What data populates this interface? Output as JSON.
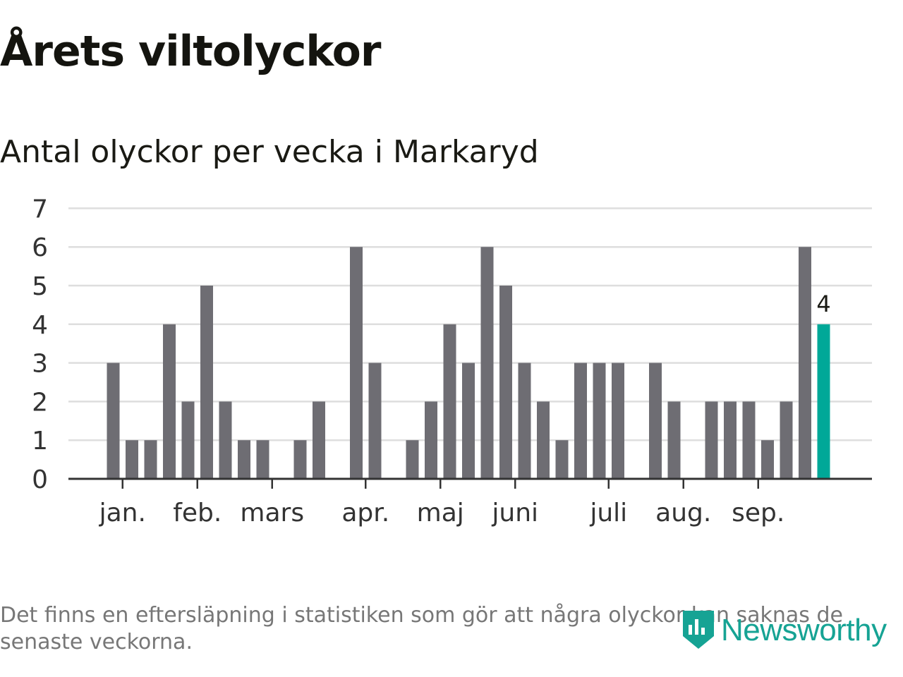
{
  "title": "Årets viltolyckor",
  "subtitle": "Antal olyckor per vecka i Markaryd",
  "footnote": "Det finns en eftersläpning i statistiken som gör att några olyckor kan saknas de senaste veckorna.",
  "logo": {
    "text": "Newsworthy",
    "icon": "chart-shield-icon"
  },
  "colors": {
    "bar": "#6e6d73",
    "highlight": "#00a898",
    "grid": "#dedede",
    "axis": "#333333"
  },
  "chart_data": {
    "type": "bar",
    "ylim": [
      0,
      7
    ],
    "yticks": [
      "0",
      "1",
      "2",
      "3",
      "4",
      "5",
      "6",
      "7"
    ],
    "grid": true,
    "xlabel": "",
    "ylabel": "",
    "week_count": 41,
    "values": [
      0,
      0,
      3,
      1,
      1,
      4,
      2,
      5,
      2,
      1,
      1,
      0,
      1,
      2,
      0,
      6,
      3,
      0,
      1,
      2,
      4,
      3,
      6,
      5,
      3,
      2,
      1,
      3,
      3,
      3,
      0,
      3,
      2,
      0,
      2,
      2,
      2,
      1,
      2,
      6,
      4
    ],
    "highlight_index": 40,
    "highlight_label": "4",
    "month_labels": [
      {
        "label": "jan.",
        "week_index": 2.5
      },
      {
        "label": "feb.",
        "week_index": 6.5
      },
      {
        "label": "mars",
        "week_index": 10.5
      },
      {
        "label": "apr.",
        "week_index": 15.5
      },
      {
        "label": "maj",
        "week_index": 19.5
      },
      {
        "label": "juni",
        "week_index": 23.5
      },
      {
        "label": "juli",
        "week_index": 28.5
      },
      {
        "label": "aug.",
        "week_index": 32.5
      },
      {
        "label": "sep.",
        "week_index": 36.5
      }
    ]
  }
}
